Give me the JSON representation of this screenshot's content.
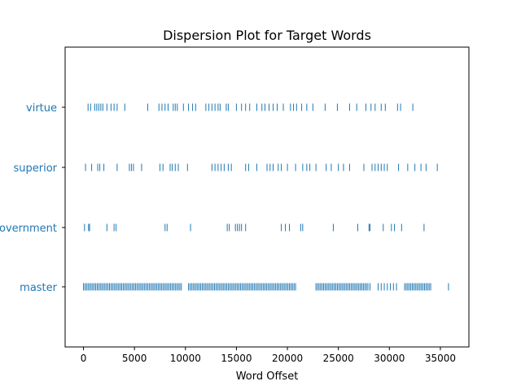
{
  "chart_data": {
    "type": "scatter",
    "title": "Dispersion Plot for Target Words",
    "xlabel": "Word Offset",
    "ylabel": "",
    "xlim": [
      -1800,
      37800
    ],
    "x_ticks": [
      0,
      5000,
      10000,
      15000,
      20000,
      25000,
      30000,
      35000
    ],
    "x_tick_labels": [
      "0",
      "5000",
      "10000",
      "15000",
      "20000",
      "25000",
      "30000",
      "35000"
    ],
    "marker": "|",
    "color": "#1f77b4",
    "categories": [
      "virtue",
      "superior",
      "government",
      "master"
    ],
    "series": [
      {
        "name": "virtue",
        "values": [
          450,
          700,
          1100,
          1300,
          1500,
          1700,
          1900,
          2300,
          2700,
          3000,
          3300,
          4050,
          6300,
          7400,
          7700,
          8000,
          8300,
          8800,
          9000,
          9200,
          9800,
          10300,
          10700,
          11000,
          12000,
          12300,
          12600,
          12900,
          13200,
          13400,
          14000,
          14200,
          15000,
          15500,
          15900,
          16300,
          17000,
          17500,
          17800,
          18200,
          18600,
          19000,
          19600,
          20300,
          20600,
          20900,
          21400,
          21900,
          22500,
          23700,
          24900,
          26100,
          26800,
          27700,
          28200,
          28600,
          29200,
          29600,
          30800,
          31100,
          32300
        ]
      },
      {
        "name": "superior",
        "values": [
          200,
          800,
          1400,
          1600,
          2000,
          3300,
          4500,
          4700,
          4900,
          5700,
          7500,
          7800,
          8500,
          8700,
          9000,
          9300,
          10200,
          12600,
          12900,
          13200,
          13500,
          13800,
          14200,
          14500,
          15900,
          16200,
          17000,
          18000,
          18300,
          18600,
          19100,
          19400,
          20000,
          20800,
          21500,
          21900,
          22200,
          22800,
          23800,
          24300,
          25000,
          25500,
          26100,
          27500,
          28300,
          28600,
          28900,
          29200,
          29500,
          29800,
          30900,
          31800,
          32500,
          33100,
          33600,
          34700
        ]
      },
      {
        "name": "government",
        "values": [
          100,
          500,
          600,
          2300,
          3000,
          3200,
          8000,
          8200,
          10500,
          14100,
          14300,
          14900,
          15100,
          15300,
          15500,
          15900,
          19400,
          19800,
          20200,
          21300,
          21500,
          24500,
          26900,
          28000,
          28100,
          29400,
          30200,
          30500,
          31200,
          33400
        ]
      },
      {
        "name": "master",
        "values": [
          0,
          150,
          300,
          450,
          600,
          750,
          900,
          1050,
          1200,
          1350,
          1500,
          1650,
          1800,
          1950,
          2100,
          2250,
          2400,
          2550,
          2700,
          2850,
          3000,
          3150,
          3300,
          3450,
          3600,
          3750,
          3900,
          4050,
          4200,
          4350,
          4500,
          4650,
          4800,
          4950,
          5100,
          5250,
          5400,
          5550,
          5700,
          5850,
          6000,
          6150,
          6300,
          6450,
          6600,
          6750,
          6900,
          7050,
          7200,
          7350,
          7500,
          7650,
          7800,
          7950,
          8100,
          8250,
          8400,
          8550,
          8700,
          8850,
          9000,
          9150,
          9300,
          9450,
          9600,
          10300,
          10450,
          10600,
          10750,
          10900,
          11050,
          11200,
          11350,
          11500,
          11650,
          11800,
          11950,
          12100,
          12250,
          12400,
          12550,
          12700,
          12850,
          13000,
          13150,
          13300,
          13450,
          13600,
          13750,
          13900,
          14050,
          14200,
          14350,
          14500,
          14650,
          14800,
          14950,
          15100,
          15250,
          15400,
          15550,
          15700,
          15850,
          16000,
          16150,
          16300,
          16450,
          16600,
          16750,
          16900,
          17050,
          17200,
          17350,
          17500,
          17650,
          17800,
          17950,
          18100,
          18250,
          18400,
          18550,
          18700,
          18850,
          19000,
          19150,
          19300,
          19450,
          19600,
          19750,
          19900,
          20050,
          20200,
          20350,
          20500,
          20650,
          20800,
          22800,
          22950,
          23100,
          23250,
          23400,
          23550,
          23700,
          23850,
          24000,
          24150,
          24300,
          24450,
          24600,
          24750,
          24900,
          25050,
          25200,
          25350,
          25500,
          25650,
          25800,
          25950,
          26100,
          26250,
          26400,
          26550,
          26700,
          26850,
          27000,
          27150,
          27300,
          27450,
          27600,
          27750,
          27900,
          28100,
          28900,
          29200,
          29500,
          29800,
          30100,
          30400,
          30700,
          31500,
          31650,
          31800,
          31950,
          32100,
          32250,
          32400,
          32550,
          32700,
          32850,
          33000,
          33150,
          33300,
          33450,
          33600,
          33750,
          33900,
          34050,
          35800
        ]
      }
    ],
    "grid": false,
    "legend": "none"
  }
}
